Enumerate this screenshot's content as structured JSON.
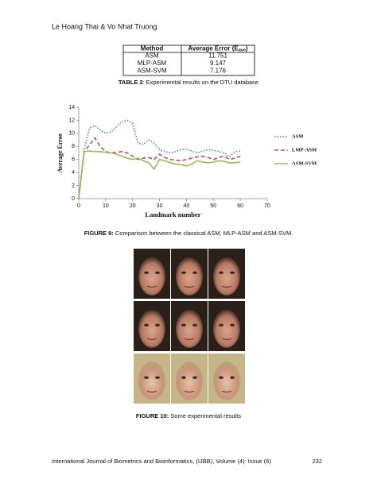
{
  "header": {
    "authors": "Le Hoang Thai & Vo Nhat Truong"
  },
  "table": {
    "header": {
      "method": "Method",
      "error": "Average Error (E",
      "error_sub": "ave",
      "error_end": ")"
    },
    "rows": [
      [
        "ASM",
        "11.751"
      ],
      [
        "MLP-ASM",
        "9.147"
      ],
      [
        "ASM-SVM",
        "7.176"
      ]
    ],
    "caption_label": "TABLE 2",
    "caption": ": Experimental results on the DTU database"
  },
  "chart_data": {
    "type": "line",
    "x_label": "Landmark number",
    "y_label": "Average Error",
    "x": [
      0,
      2,
      4,
      6,
      8,
      10,
      12,
      14,
      16,
      18,
      20,
      22,
      24,
      26,
      28,
      30,
      32,
      34,
      36,
      38,
      40,
      42,
      44,
      46,
      48,
      50,
      52,
      54,
      56,
      58,
      60
    ],
    "series": [
      {
        "name": "ASM",
        "color": "#4f81bd",
        "dash": "1.5 2",
        "values": [
          0,
          7.5,
          10.8,
          11.2,
          10.5,
          10,
          10.2,
          11,
          11.8,
          12,
          11.5,
          8.5,
          8.3,
          9,
          8.5,
          7.5,
          7.2,
          7,
          7.2,
          7.5,
          7.6,
          7.3,
          7,
          7.3,
          7.5,
          7.4,
          7.2,
          7,
          6.4,
          7.2,
          7.3
        ]
      },
      {
        "name": "LMP-ASM",
        "color": "#c0504d",
        "dash": "5 3",
        "values": [
          0,
          7.2,
          8.2,
          9.3,
          8,
          7.2,
          7,
          7.1,
          7.2,
          7,
          6.5,
          6,
          6.2,
          6.3,
          6,
          6.8,
          6.3,
          6,
          5.9,
          5.8,
          6,
          6.2,
          6.4,
          6.5,
          6.3,
          6,
          6.3,
          6.5,
          6,
          6.2,
          6.5
        ]
      },
      {
        "name": "ASM-SVM",
        "color": "#9bbb59",
        "dash": "",
        "values": [
          0,
          7.2,
          7.3,
          7.2,
          7.2,
          7.1,
          7,
          6.8,
          6.5,
          6.2,
          6,
          6.2,
          5.8,
          5.5,
          4.5,
          6,
          5.8,
          5.5,
          5.3,
          5.2,
          5,
          5.3,
          5.8,
          5.6,
          5.5,
          5.6,
          5.8,
          5.7,
          5.5,
          5.5,
          5.6
        ]
      }
    ],
    "xlim": [
      0,
      70
    ],
    "xticks": [
      0,
      10,
      20,
      30,
      40,
      50,
      60,
      70
    ],
    "ylim": [
      0,
      14
    ],
    "yticks": [
      0,
      2,
      4,
      6,
      8,
      10,
      12,
      14
    ],
    "legend": "right",
    "caption_label": "FIGURE 9:",
    "caption": " Comparison between the classical ASM, MLP-ASM and ASM-SVM."
  },
  "figure10": {
    "caption_label": "FIGURE 10:",
    "caption": " Some experimental results"
  },
  "footer": {
    "journal": "International Journal of Biometrics and Bioinformatics, (IJBB), Volume (4): Issue (6)",
    "page": "232"
  }
}
